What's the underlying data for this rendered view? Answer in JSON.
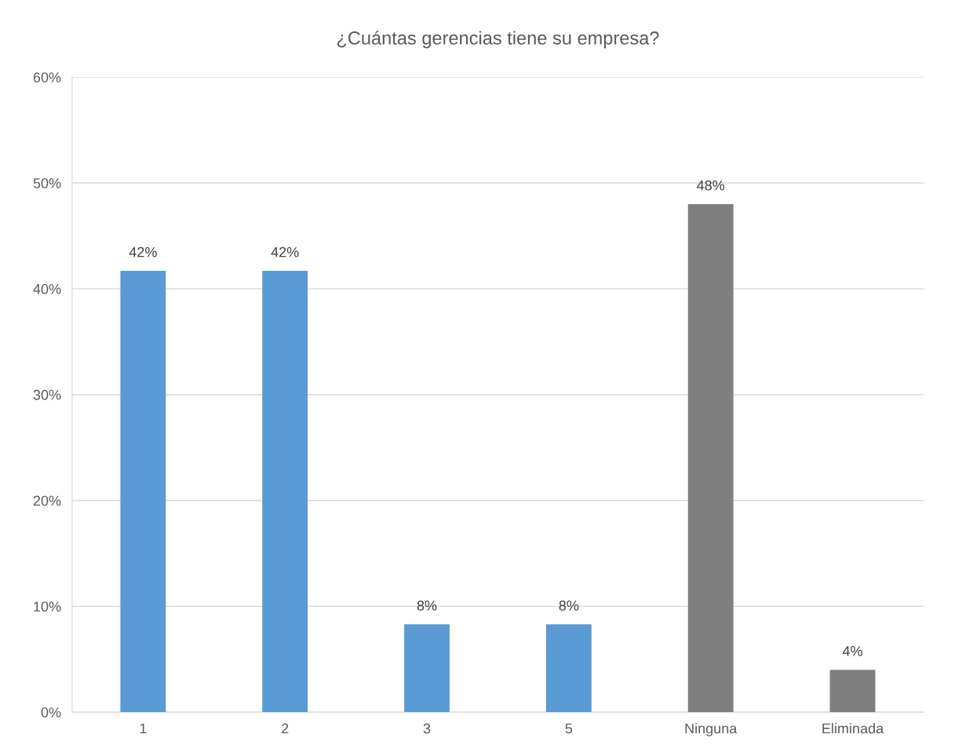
{
  "chart_data": {
    "type": "bar",
    "title": "¿Cuántas gerencias tiene su empresa?",
    "categories": [
      "1",
      "2",
      "3",
      "5",
      "Ninguna",
      "Eliminada"
    ],
    "values": [
      41.7,
      41.7,
      8.3,
      8.3,
      48,
      4
    ],
    "colors": [
      "#5b9bd5",
      "#5b9bd5",
      "#5b9bd5",
      "#5b9bd5",
      "#7f7f7f",
      "#7f7f7f"
    ],
    "value_labels": [
      "42%",
      "42%",
      "8%",
      "8%",
      "48%",
      "4%"
    ],
    "ylim": [
      0,
      60
    ],
    "yticks": [
      {
        "value": 0,
        "label": "0%"
      },
      {
        "value": 10,
        "label": "10%"
      },
      {
        "value": 20,
        "label": "20%"
      },
      {
        "value": 30,
        "label": "30%"
      },
      {
        "value": 40,
        "label": "40%"
      },
      {
        "value": 50,
        "label": "50%"
      },
      {
        "value": 60,
        "label": "60%"
      }
    ],
    "grid": "y",
    "legend": false
  }
}
